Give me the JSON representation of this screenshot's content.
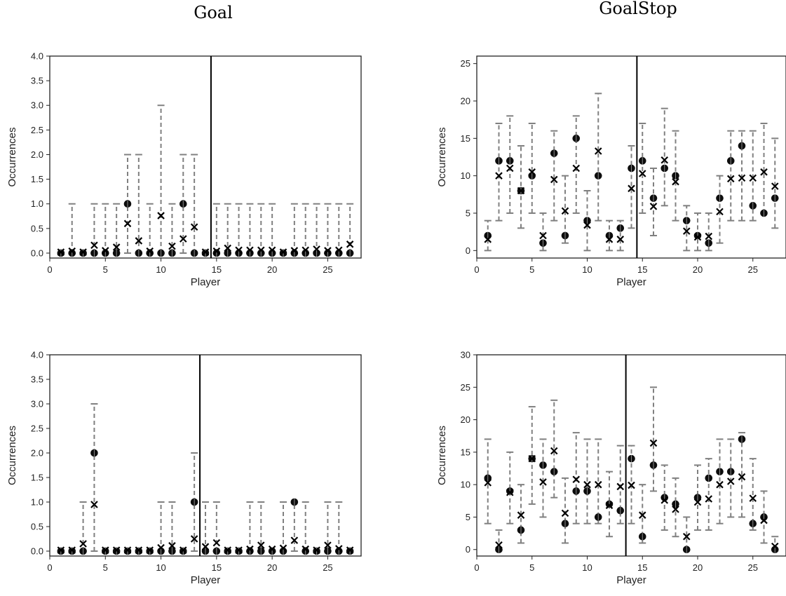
{
  "figure": {
    "titles": [
      "Goal",
      "GoalStop"
    ]
  },
  "chart_data": [
    {
      "type": "scatter",
      "title": "Goal",
      "xlabel": "Player",
      "ylabel": "Occurrences",
      "xlim": [
        0,
        28
      ],
      "ylim": [
        -0.1,
        4.0
      ],
      "xticks": [
        0,
        5,
        10,
        15,
        20,
        25
      ],
      "yticks": [
        0.0,
        0.5,
        1.0,
        1.5,
        2.0,
        2.5,
        3.0,
        3.5,
        4.0
      ],
      "ytick_labels": [
        "0.0",
        "0.5",
        "1.0",
        "1.5",
        "2.0",
        "2.5",
        "3.0",
        "3.5",
        "4.0"
      ],
      "vline": 14.5,
      "x": [
        1,
        2,
        3,
        4,
        5,
        6,
        7,
        8,
        9,
        10,
        11,
        12,
        13,
        14,
        15,
        16,
        17,
        18,
        19,
        20,
        21,
        22,
        23,
        24,
        25,
        26,
        27
      ],
      "series": [
        {
          "marker": "circle",
          "values": [
            0,
            0,
            0,
            0,
            0,
            0,
            1,
            0,
            0,
            0,
            0,
            1,
            0,
            0,
            0,
            0,
            0,
            0,
            0,
            0,
            0,
            0,
            0,
            0,
            0,
            0,
            0
          ]
        },
        {
          "marker": "x",
          "values": [
            0.02,
            0.04,
            0.02,
            0.16,
            0.05,
            0.12,
            0.6,
            0.25,
            0.04,
            0.76,
            0.14,
            0.29,
            0.53,
            0.02,
            0.04,
            0.1,
            0.06,
            0.06,
            0.06,
            0.06,
            0.02,
            0.05,
            0.06,
            0.08,
            0.05,
            0.06,
            0.18
          ]
        },
        {
          "marker": "errorbar",
          "lower": [
            0,
            0,
            0,
            0,
            0,
            0,
            0,
            0,
            0,
            0,
            0,
            0,
            0,
            0,
            0,
            0,
            0,
            0,
            0,
            0,
            0,
            0,
            0,
            0,
            0,
            0,
            0
          ],
          "upper": [
            0,
            1,
            0,
            1,
            1,
            1,
            2,
            2,
            1,
            3,
            1,
            2,
            2,
            0,
            1,
            1,
            1,
            1,
            1,
            1,
            0,
            1,
            1,
            1,
            1,
            1,
            1
          ]
        }
      ]
    },
    {
      "type": "scatter",
      "title": "GoalStop",
      "xlabel": "Player",
      "ylabel": "Occurrences",
      "xlim": [
        0,
        28
      ],
      "ylim": [
        -1,
        26
      ],
      "xticks": [
        0,
        5,
        10,
        15,
        20,
        25
      ],
      "yticks": [
        0,
        5,
        10,
        15,
        20,
        25
      ],
      "ytick_labels": [
        "0",
        "5",
        "10",
        "15",
        "20",
        "25"
      ],
      "vline": 14.5,
      "x": [
        1,
        2,
        3,
        4,
        5,
        6,
        7,
        8,
        9,
        10,
        11,
        12,
        13,
        14,
        15,
        16,
        17,
        18,
        19,
        20,
        21,
        22,
        23,
        24,
        25,
        26,
        27
      ],
      "series": [
        {
          "marker": "circle",
          "values": [
            2,
            12,
            12,
            8,
            10,
            1,
            13,
            2,
            15,
            4,
            10,
            2,
            3,
            11,
            12,
            7,
            11,
            10,
            4,
            2,
            1,
            7,
            12,
            14,
            6,
            5,
            7
          ]
        },
        {
          "marker": "x",
          "values": [
            1.5,
            10,
            11,
            8,
            10.5,
            2,
            9.5,
            5.3,
            11,
            3.4,
            13.3,
            1.5,
            1.5,
            8.3,
            10.3,
            5.9,
            12.1,
            9.2,
            2.6,
            1.8,
            1.9,
            5.2,
            9.6,
            9.7,
            9.7,
            10.5,
            8.6
          ]
        },
        {
          "marker": "errorbar",
          "lower": [
            0,
            4,
            5,
            3,
            5,
            0,
            4,
            1,
            5,
            0,
            4,
            0,
            0,
            3,
            5,
            2,
            6,
            4,
            0,
            0,
            0,
            1,
            4,
            4,
            4,
            5,
            3
          ],
          "upper": [
            4,
            17,
            18,
            14,
            17,
            5,
            16,
            10,
            18,
            8,
            21,
            4,
            4,
            14,
            17,
            11,
            19,
            16,
            6,
            5,
            5,
            10,
            16,
            16,
            16,
            17,
            15
          ]
        }
      ]
    },
    {
      "type": "scatter",
      "title": "",
      "xlabel": "Player",
      "ylabel": "Occurrences",
      "xlim": [
        0,
        28
      ],
      "ylim": [
        -0.1,
        4.0
      ],
      "xticks": [
        0,
        5,
        10,
        15,
        20,
        25
      ],
      "yticks": [
        0.0,
        0.5,
        1.0,
        1.5,
        2.0,
        2.5,
        3.0,
        3.5,
        4.0
      ],
      "ytick_labels": [
        "0.0",
        "0.5",
        "1.0",
        "1.5",
        "2.0",
        "2.5",
        "3.0",
        "3.5",
        "4.0"
      ],
      "vline": 13.5,
      "x": [
        1,
        2,
        3,
        4,
        5,
        6,
        7,
        8,
        9,
        10,
        11,
        12,
        13,
        14,
        15,
        16,
        17,
        18,
        19,
        20,
        21,
        22,
        23,
        24,
        25,
        26,
        27
      ],
      "series": [
        {
          "marker": "circle",
          "values": [
            0,
            0,
            0,
            2,
            0,
            0,
            0,
            0,
            0,
            0,
            0,
            0,
            1,
            0,
            0,
            0,
            0,
            0,
            0,
            0,
            0,
            1,
            0,
            0,
            0,
            0,
            0
          ]
        },
        {
          "marker": "x",
          "values": [
            0.02,
            0.02,
            0.15,
            0.95,
            0.02,
            0.02,
            0.02,
            0.02,
            0.02,
            0.07,
            0.11,
            0.02,
            0.25,
            0.09,
            0.17,
            0.02,
            0.02,
            0.04,
            0.12,
            0.04,
            0.06,
            0.22,
            0.04,
            0.02,
            0.12,
            0.05,
            0.02
          ]
        },
        {
          "marker": "errorbar",
          "lower": [
            0,
            0,
            0,
            0,
            0,
            0,
            0,
            0,
            0,
            0,
            0,
            0,
            0,
            0,
            0,
            0,
            0,
            0,
            0,
            0,
            0,
            0,
            0,
            0,
            0,
            0,
            0
          ],
          "upper": [
            0,
            0,
            1,
            3,
            0,
            0,
            0,
            0,
            0,
            1,
            1,
            0,
            2,
            1,
            1,
            0,
            0,
            1,
            1,
            0,
            1,
            1,
            1,
            0,
            1,
            1,
            0
          ]
        }
      ]
    },
    {
      "type": "scatter",
      "title": "",
      "xlabel": "Player",
      "ylabel": "Occurrences",
      "xlim": [
        0,
        28
      ],
      "ylim": [
        -1,
        30
      ],
      "xticks": [
        0,
        5,
        10,
        15,
        20,
        25
      ],
      "yticks": [
        0,
        5,
        10,
        15,
        20,
        25,
        30
      ],
      "ytick_labels": [
        "0",
        "5",
        "10",
        "15",
        "20",
        "25",
        "30"
      ],
      "vline": 13.5,
      "x": [
        1,
        2,
        3,
        4,
        5,
        6,
        7,
        8,
        9,
        10,
        11,
        12,
        13,
        14,
        15,
        16,
        17,
        18,
        19,
        20,
        21,
        22,
        23,
        24,
        25,
        26,
        27
      ],
      "series": [
        {
          "marker": "circle",
          "values": [
            11,
            0,
            9,
            3,
            14,
            13,
            12,
            4,
            9,
            9,
            5,
            7,
            6,
            14,
            2,
            13,
            8,
            7,
            0,
            8,
            11,
            12,
            12,
            17,
            4,
            5,
            0
          ]
        },
        {
          "marker": "x",
          "values": [
            10.3,
            0.7,
            8.8,
            5.3,
            14,
            10.4,
            15.2,
            5.6,
            10.8,
            10,
            10,
            6.8,
            9.7,
            9.9,
            5.3,
            16.4,
            7.6,
            6.2,
            2,
            7.3,
            7.8,
            10,
            10.5,
            11.2,
            7.9,
            4.5,
            0.5
          ]
        },
        {
          "marker": "errorbar",
          "lower": [
            4,
            0,
            4,
            1,
            7,
            5,
            8,
            1,
            4,
            4,
            4,
            2,
            4,
            4,
            1,
            9,
            3,
            2,
            0,
            3,
            3,
            4,
            5,
            5,
            3,
            1,
            0
          ],
          "upper": [
            17,
            3,
            15,
            10,
            22,
            17,
            23,
            11,
            18,
            17,
            17,
            12,
            16,
            16,
            10,
            25,
            13,
            11,
            5,
            13,
            14,
            17,
            17,
            18,
            14,
            9,
            2
          ]
        }
      ]
    }
  ]
}
